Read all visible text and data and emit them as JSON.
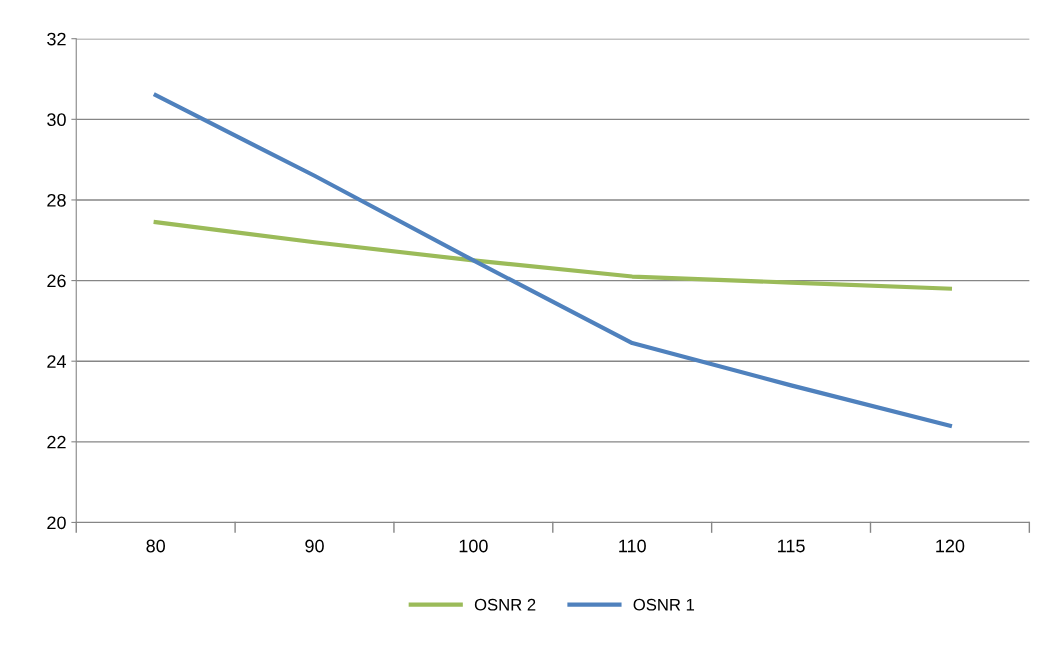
{
  "chart_data": {
    "type": "line",
    "categories": [
      "80",
      "90",
      "100",
      "110",
      "115",
      "120"
    ],
    "series": [
      {
        "name": "OSNR 2",
        "color": "#9bbb59",
        "values": [
          27.45,
          26.95,
          26.5,
          26.1,
          25.95,
          25.8
        ]
      },
      {
        "name": "OSNR 1",
        "color": "#4f81bd",
        "values": [
          30.6,
          28.6,
          26.5,
          24.45,
          23.4,
          22.4
        ]
      }
    ],
    "ylim": [
      20,
      32
    ],
    "yticks": [
      20,
      22,
      24,
      26,
      28,
      30,
      32
    ],
    "grid": "y",
    "legend": "bottom",
    "marker": "none",
    "line_style": "solid"
  }
}
